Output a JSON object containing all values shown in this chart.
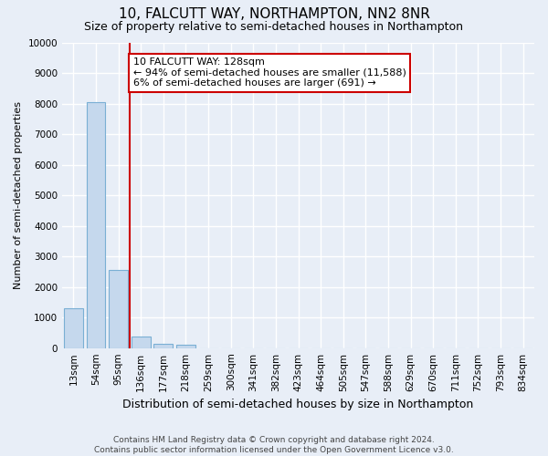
{
  "title": "10, FALCUTT WAY, NORTHAMPTON, NN2 8NR",
  "subtitle": "Size of property relative to semi-detached houses in Northampton",
  "xlabel": "Distribution of semi-detached houses by size in Northampton",
  "ylabel": "Number of semi-detached properties",
  "categories": [
    "13sqm",
    "54sqm",
    "95sqm",
    "136sqm",
    "177sqm",
    "218sqm",
    "259sqm",
    "300sqm",
    "341sqm",
    "382sqm",
    "423sqm",
    "464sqm",
    "505sqm",
    "547sqm",
    "588sqm",
    "629sqm",
    "670sqm",
    "711sqm",
    "752sqm",
    "793sqm",
    "834sqm"
  ],
  "values": [
    1300,
    8050,
    2550,
    390,
    150,
    100,
    0,
    0,
    0,
    0,
    0,
    0,
    0,
    0,
    0,
    0,
    0,
    0,
    0,
    0,
    0
  ],
  "bar_color": "#c5d8ed",
  "bar_edge_color": "#7aafd4",
  "vline_color": "#cc0000",
  "annotation_line1": "10 FALCUTT WAY: 128sqm",
  "annotation_line2": "← 94% of semi-detached houses are smaller (11,588)",
  "annotation_line3": "6% of semi-detached houses are larger (691) →",
  "annotation_box_color": "#ffffff",
  "annotation_box_edge": "#cc0000",
  "ylim": [
    0,
    10000
  ],
  "yticks": [
    0,
    1000,
    2000,
    3000,
    4000,
    5000,
    6000,
    7000,
    8000,
    9000,
    10000
  ],
  "footer_line1": "Contains HM Land Registry data © Crown copyright and database right 2024.",
  "footer_line2": "Contains public sector information licensed under the Open Government Licence v3.0.",
  "bg_color": "#e8eef7",
  "plot_bg_color": "#e8eef7",
  "grid_color": "#ffffff",
  "title_fontsize": 11,
  "subtitle_fontsize": 9,
  "ylabel_fontsize": 8,
  "xlabel_fontsize": 9,
  "tick_fontsize": 7.5,
  "annotation_fontsize": 8,
  "footer_fontsize": 6.5
}
